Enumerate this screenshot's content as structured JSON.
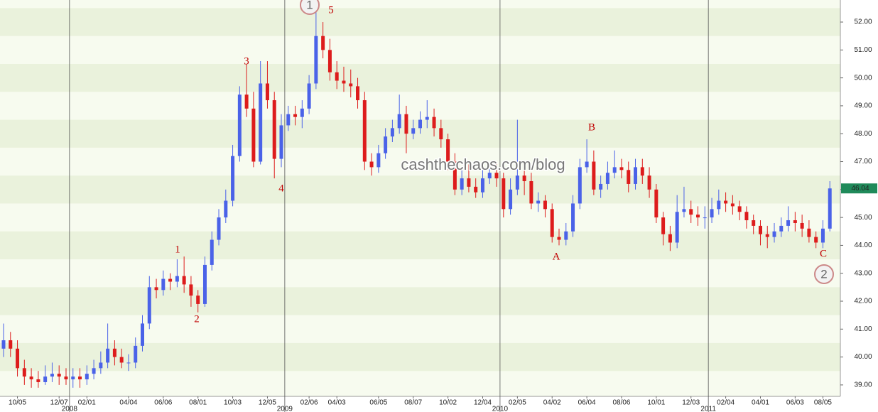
{
  "chart_data": {
    "type": "candlestick",
    "open": [
      40.3,
      40.6,
      40.3,
      39.6,
      39.3,
      39.2,
      39.1,
      39.3,
      39.4,
      39.3,
      39.2,
      39.3,
      39.2,
      39.4,
      39.6,
      39.8,
      40.3,
      40.0,
      39.8,
      39.8,
      40.4,
      41.2,
      42.5,
      42.4,
      42.8,
      42.7,
      42.9,
      42.6,
      42.2,
      41.9,
      43.3,
      44.2,
      45.0,
      45.6,
      47.2,
      49.4,
      48.9,
      47.0,
      49.8,
      49.2,
      47.1,
      48.3,
      48.7,
      48.6,
      48.9,
      49.8,
      51.5,
      51.0,
      50.2,
      49.9,
      49.8,
      49.7,
      49.2,
      47.0,
      46.8,
      47.3,
      47.9,
      48.2,
      48.7,
      48.0,
      48.2,
      48.5,
      48.6,
      48.2,
      47.8,
      47.0,
      46.0,
      46.4,
      46.1,
      45.9,
      46.4,
      46.6,
      46.4,
      45.3,
      46.0,
      46.5,
      46.3,
      45.5,
      45.6,
      45.3,
      44.3,
      44.2,
      44.5,
      45.5,
      46.8,
      47.0,
      46.0,
      46.2,
      46.6,
      46.8,
      46.7,
      46.2,
      46.8,
      46.5,
      46.0,
      45.0,
      44.4,
      44.1,
      45.2,
      45.3,
      45.1,
      45.0,
      45.0,
      45.3,
      45.6,
      45.5,
      45.4,
      45.2,
      44.9,
      44.7,
      44.4,
      44.3,
      44.5,
      44.7,
      44.9,
      44.8,
      44.6,
      44.3,
      44.1,
      44.6
    ],
    "high": [
      41.2,
      40.9,
      40.6,
      39.9,
      39.6,
      39.5,
      39.7,
      39.8,
      39.7,
      39.6,
      39.6,
      39.6,
      39.7,
      39.9,
      40.2,
      41.2,
      40.6,
      40.3,
      40.1,
      40.7,
      41.5,
      42.9,
      42.8,
      43.1,
      43.0,
      43.5,
      43.6,
      42.9,
      42.4,
      43.6,
      44.5,
      45.3,
      46.0,
      47.6,
      49.7,
      50.5,
      49.5,
      50.6,
      50.6,
      49.5,
      48.7,
      49.0,
      49.0,
      49.2,
      50.1,
      52.6,
      52.0,
      51.4,
      50.6,
      50.4,
      50.3,
      50.0,
      49.5,
      47.3,
      47.6,
      48.2,
      48.5,
      49.4,
      49.0,
      48.5,
      48.8,
      49.2,
      48.9,
      48.5,
      48.0,
      47.3,
      46.7,
      46.9,
      46.4,
      46.7,
      46.9,
      46.9,
      46.6,
      46.4,
      48.5,
      46.8,
      46.6,
      45.9,
      45.8,
      45.5,
      44.6,
      44.8,
      45.8,
      47.1,
      47.8,
      47.4,
      46.5,
      47.0,
      47.4,
      47.1,
      47.0,
      47.1,
      47.1,
      46.8,
      46.2,
      45.2,
      44.7,
      45.8,
      46.1,
      45.6,
      45.4,
      45.4,
      45.7,
      46.0,
      45.9,
      45.8,
      45.6,
      45.4,
      45.1,
      44.9,
      44.7,
      44.8,
      45.0,
      45.4,
      45.2,
      45.1,
      44.9,
      44.5,
      44.9,
      46.3
    ],
    "low": [
      40.0,
      40.0,
      39.3,
      39.0,
      38.9,
      38.9,
      39.0,
      39.1,
      39.0,
      39.0,
      38.9,
      38.9,
      39.0,
      39.2,
      39.4,
      39.6,
      39.7,
      39.6,
      39.5,
      39.6,
      40.2,
      41.0,
      42.1,
      42.2,
      42.4,
      42.5,
      42.3,
      41.8,
      41.6,
      41.8,
      43.1,
      44.0,
      44.8,
      45.4,
      47.0,
      48.6,
      46.8,
      46.9,
      48.9,
      46.4,
      46.8,
      48.1,
      48.3,
      48.2,
      48.7,
      49.6,
      50.7,
      49.9,
      49.6,
      49.5,
      49.3,
      48.9,
      46.7,
      46.5,
      46.6,
      47.1,
      47.7,
      48.0,
      47.3,
      47.8,
      48.0,
      48.2,
      47.9,
      47.5,
      46.7,
      45.8,
      45.8,
      45.9,
      45.7,
      45.7,
      46.2,
      46.1,
      45.0,
      45.1,
      45.8,
      45.8,
      45.3,
      45.2,
      45.0,
      44.1,
      44.0,
      44.0,
      44.3,
      45.3,
      46.6,
      45.8,
      45.7,
      46.0,
      46.4,
      46.4,
      45.9,
      46.0,
      46.2,
      45.7,
      44.8,
      44.0,
      43.8,
      43.9,
      45.0,
      44.8,
      44.7,
      44.6,
      44.8,
      45.1,
      45.2,
      45.1,
      44.9,
      44.6,
      44.4,
      44.0,
      43.9,
      44.1,
      44.3,
      44.5,
      44.5,
      44.3,
      44.1,
      43.9,
      43.9,
      44.5
    ],
    "close": [
      40.6,
      40.3,
      39.6,
      39.3,
      39.2,
      39.1,
      39.3,
      39.4,
      39.3,
      39.2,
      39.3,
      39.2,
      39.4,
      39.6,
      39.8,
      40.3,
      40.0,
      39.8,
      39.8,
      40.4,
      41.2,
      42.5,
      42.4,
      42.8,
      42.7,
      42.9,
      42.6,
      42.2,
      41.9,
      43.3,
      44.2,
      45.0,
      45.6,
      47.2,
      49.4,
      48.9,
      47.0,
      49.8,
      49.2,
      47.1,
      48.3,
      48.7,
      48.6,
      48.9,
      49.8,
      51.5,
      51.0,
      50.2,
      49.9,
      49.8,
      49.7,
      49.2,
      47.0,
      46.8,
      47.3,
      47.9,
      48.2,
      48.7,
      48.0,
      48.2,
      48.5,
      48.6,
      48.2,
      47.8,
      47.0,
      46.0,
      46.4,
      46.1,
      45.9,
      46.4,
      46.6,
      46.4,
      45.3,
      46.0,
      46.5,
      46.3,
      45.5,
      45.6,
      45.3,
      44.3,
      44.2,
      44.5,
      45.5,
      46.8,
      47.0,
      46.0,
      46.2,
      46.6,
      46.8,
      46.7,
      46.2,
      46.8,
      46.5,
      46.0,
      45.0,
      44.4,
      44.1,
      45.2,
      45.3,
      45.1,
      45.0,
      45.0,
      45.3,
      45.6,
      45.5,
      45.4,
      45.2,
      44.9,
      44.7,
      44.4,
      44.3,
      44.5,
      44.7,
      44.9,
      44.8,
      44.6,
      44.3,
      44.1,
      44.6,
      46.04
    ],
    "categories": [
      null,
      null,
      "10/05",
      null,
      null,
      null,
      null,
      null,
      "12/07",
      null,
      null,
      null,
      "02/01",
      null,
      null,
      null,
      null,
      null,
      "04/04",
      null,
      null,
      null,
      null,
      "06/06",
      null,
      null,
      null,
      null,
      "08/01",
      null,
      null,
      null,
      null,
      "10/03",
      null,
      null,
      null,
      null,
      "12/05",
      null,
      null,
      null,
      null,
      null,
      "02/06",
      null,
      null,
      null,
      "04/03",
      null,
      null,
      null,
      null,
      null,
      "06/05",
      null,
      null,
      null,
      null,
      "08/07",
      null,
      null,
      null,
      null,
      "10/02",
      null,
      null,
      null,
      null,
      "12/04",
      null,
      null,
      null,
      null,
      "02/05",
      null,
      null,
      null,
      null,
      "04/02",
      null,
      null,
      null,
      null,
      "06/04",
      null,
      null,
      null,
      null,
      "08/06",
      null,
      null,
      null,
      null,
      "10/01",
      null,
      null,
      null,
      null,
      "12/03",
      null,
      null,
      null,
      null,
      "02/04",
      null,
      null,
      null,
      null,
      "04/01",
      null,
      null,
      null,
      null,
      "06/03",
      null,
      null,
      null,
      "08/05",
      null
    ],
    "year_labels": [
      null,
      null,
      null,
      null,
      null,
      null,
      null,
      null,
      null,
      null,
      "2008",
      null,
      null,
      null,
      null,
      null,
      null,
      null,
      null,
      null,
      null,
      null,
      null,
      null,
      null,
      null,
      null,
      null,
      null,
      null,
      null,
      null,
      null,
      null,
      null,
      null,
      null,
      null,
      null,
      null,
      null,
      "2009",
      null,
      null,
      null,
      null,
      null,
      null,
      null,
      null,
      null,
      null,
      null,
      null,
      null,
      null,
      null,
      null,
      null,
      null,
      null,
      null,
      null,
      null,
      null,
      null,
      null,
      null,
      null,
      null,
      null,
      null,
      "2010",
      null,
      null,
      null,
      null,
      null,
      null,
      null,
      null,
      null,
      null,
      null,
      null,
      null,
      null,
      null,
      null,
      null,
      null,
      null,
      null,
      null,
      null,
      null,
      null,
      null,
      null,
      null,
      null,
      null,
      "2011",
      null,
      null,
      null,
      null,
      null,
      null,
      null,
      null,
      null,
      null,
      null,
      null,
      null,
      null,
      null,
      null,
      null
    ],
    "ylim": [
      38.59,
      52.79
    ],
    "yticks": [
      {
        "value": 39,
        "label": "39.00"
      },
      {
        "value": 40,
        "label": "40.00"
      },
      {
        "value": 41,
        "label": "41.00"
      },
      {
        "value": 42,
        "label": "42.00"
      },
      {
        "value": 43,
        "label": "43.00"
      },
      {
        "value": 44,
        "label": "44.00"
      },
      {
        "value": 45,
        "label": "45.00"
      },
      {
        "value": 46,
        "label": "46.00"
      },
      {
        "value": 47,
        "label": "47.00"
      },
      {
        "value": 48,
        "label": "48.00"
      },
      {
        "value": 49,
        "label": "49.00"
      },
      {
        "value": 50,
        "label": "50.00"
      },
      {
        "value": 51,
        "label": "51.00"
      },
      {
        "value": 52,
        "label": "52.00"
      }
    ],
    "up_color": "#4a62e8",
    "down_color": "#dd1c1c",
    "last_price_color": "#1f8a5a",
    "annotations": [
      "1",
      "2",
      "3",
      "4",
      "5",
      "A",
      "B",
      "C"
    ],
    "circled_annotations": [
      "1",
      "2"
    ],
    "watermark": "cashthechaos.com/blog"
  }
}
